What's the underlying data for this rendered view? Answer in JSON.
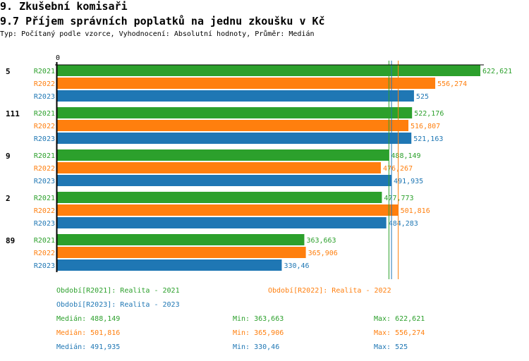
{
  "header": {
    "section": "9. Zkušební komisaři",
    "title": "9.7 Příjem správních poplatků na jednu zkoušku v Kč",
    "subtitle": "Typ: Počítaný podle vzorce, Vyhodnocení: Absolutní hodnoty, Průměr: Medián"
  },
  "chart_data": {
    "type": "bar",
    "orientation": "horizontal",
    "xlim": [
      0,
      622.621
    ],
    "axis_tick_label": "0",
    "categories": [
      "5",
      "111",
      "9",
      "2",
      "89"
    ],
    "series": [
      {
        "name": "R2021",
        "color": "#2ca02c",
        "values": [
          622.621,
          522.176,
          488.149,
          477.773,
          363.663
        ],
        "labels": [
          "622,621",
          "522,176",
          "488,149",
          "477,773",
          "363,663"
        ]
      },
      {
        "name": "R2022",
        "color": "#ff7f0e",
        "values": [
          556.274,
          516.807,
          476.267,
          501.816,
          365.906
        ],
        "labels": [
          "556,274",
          "516,807",
          "476,267",
          "501,816",
          "365,906"
        ]
      },
      {
        "name": "R2023",
        "color": "#1f77b4",
        "values": [
          525,
          521.163,
          491.935,
          484.283,
          330.46
        ],
        "labels": [
          "525",
          "521,163",
          "491,935",
          "484,283",
          "330,46"
        ]
      }
    ],
    "median_lines": [
      488.149,
      501.816,
      491.935
    ]
  },
  "legend": {
    "periods": [
      "Období[R2021]: Realita - 2021",
      "Období[R2022]: Realita - 2022",
      "Období[R2023]: Realita - 2023"
    ],
    "stats": [
      {
        "median": "Medián: 488,149",
        "min": "Min: 363,663",
        "max": "Max: 622,621"
      },
      {
        "median": "Medián: 501,816",
        "min": "Min: 365,906",
        "max": "Max: 556,274"
      },
      {
        "median": "Medián: 491,935",
        "min": "Min: 330,46",
        "max": "Max: 525"
      }
    ]
  }
}
